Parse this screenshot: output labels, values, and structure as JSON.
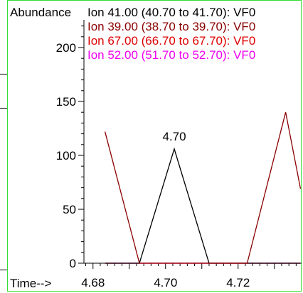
{
  "chart_data": {
    "type": "line",
    "ylabel": "Abundance",
    "xlabel": "Time-->",
    "xlim": [
      4.6775,
      4.7375
    ],
    "ylim": [
      0,
      225
    ],
    "x_ticks": [
      "4.68",
      "4.70",
      "4.72"
    ],
    "y_ticks": [
      "0",
      "50",
      "100",
      "150",
      "200"
    ],
    "grid": false,
    "legend_position": "top",
    "series": [
      {
        "name": "Ion  41.00 (40.70 to 41.70): VF0",
        "color": "#000000",
        "x": [
          4.6833,
          4.6928,
          4.7024,
          4.712,
          4.7225,
          4.7331,
          4.7372
        ],
        "y": [
          0,
          0,
          106,
          0,
          0,
          0,
          0
        ]
      },
      {
        "name": "Ion  39.00 (38.70 to 39.70): VF0",
        "color": "#8b0000",
        "x": [
          4.6833,
          4.6928,
          4.7024,
          4.712,
          4.7225,
          4.7331,
          4.7372
        ],
        "y": [
          122,
          0,
          0,
          0,
          0,
          140,
          69
        ]
      },
      {
        "name": "Ion  67.00 (66.70 to 67.70): VF0",
        "color": "#dd0000",
        "x": [
          4.6833,
          4.7372
        ],
        "y": [
          0,
          0
        ]
      },
      {
        "name": "Ion  52.00 (51.70 to 52.70): VF0",
        "color": "#ee00ee",
        "x": [
          4.6833,
          4.7372
        ],
        "y": [
          0,
          0
        ]
      }
    ],
    "annotations": [
      {
        "text": "4.70",
        "x": 4.7024,
        "y": 106
      }
    ]
  }
}
